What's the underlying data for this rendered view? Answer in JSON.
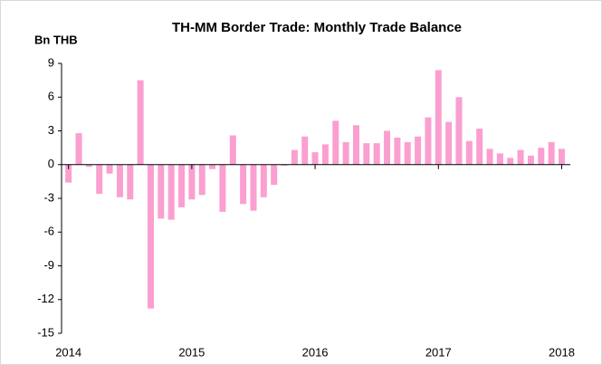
{
  "chart_data": {
    "type": "bar",
    "title": "TH-MM Border Trade: Monthly Trade Balance",
    "y_label": "Bn THB",
    "categories": [
      "2014",
      null,
      null,
      null,
      null,
      null,
      null,
      null,
      null,
      null,
      null,
      null,
      "2015",
      null,
      null,
      null,
      null,
      null,
      null,
      null,
      null,
      null,
      null,
      null,
      "2016",
      null,
      null,
      null,
      null,
      null,
      null,
      null,
      null,
      null,
      null,
      null,
      "2017",
      null,
      null,
      null,
      null,
      null,
      null,
      null,
      null,
      null,
      null,
      null,
      "2018"
    ],
    "values": [
      -1.6,
      2.8,
      -0.2,
      -2.6,
      -0.8,
      -2.9,
      -3.1,
      7.5,
      -12.8,
      -4.8,
      -4.9,
      -3.8,
      -3.1,
      -2.7,
      -0.4,
      -4.2,
      2.6,
      -3.5,
      -4.1,
      -2.9,
      -1.8,
      -0.1,
      1.3,
      2.5,
      1.1,
      1.8,
      3.9,
      2.0,
      3.5,
      1.9,
      1.9,
      3.0,
      2.4,
      2.0,
      2.5,
      4.2,
      8.4,
      3.8,
      6.0,
      2.1,
      3.2,
      1.4,
      1.0,
      0.6,
      1.3,
      0.8,
      1.5,
      2.0,
      1.4
    ],
    "color": "#fa9fd0",
    "ylim": [
      -15,
      9
    ],
    "yticks": [
      -15,
      -12,
      -9,
      -6,
      -3,
      0,
      3,
      6,
      9
    ],
    "grid": false
  }
}
